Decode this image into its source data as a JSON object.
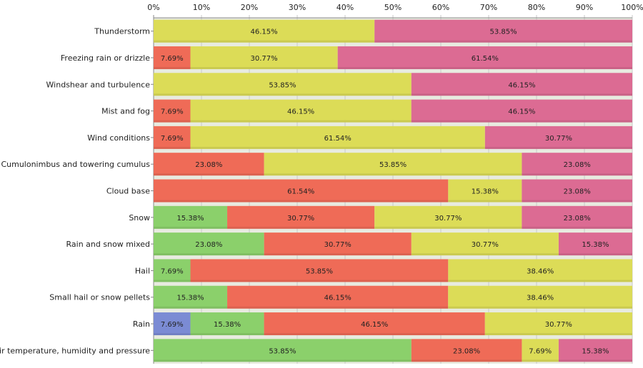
{
  "chart_data": {
    "type": "bar",
    "orientation": "horizontal",
    "stacked": "percent",
    "title": "",
    "xlabel": "",
    "ylabel": "",
    "xlim": [
      0,
      100
    ],
    "grid": true,
    "legend": "none",
    "x_ticks": [
      "0%",
      "10%",
      "20%",
      "30%",
      "40%",
      "50%",
      "60%",
      "70%",
      "80%",
      "90%",
      "100%"
    ],
    "categories": [
      "Thunderstorm",
      "Freezing rain or drizzle",
      "Windshear and turbulence",
      "Mist and fog",
      "Wind conditions",
      "Cumulonimbus and towering cumulus",
      "Cloud base",
      "Snow",
      "Rain and snow mixed",
      "Hail",
      "Small hail or snow pellets",
      "Rain",
      "Air temperature, humidity and pressure"
    ],
    "series": [
      {
        "name": "blue",
        "color": "#7b8bd4",
        "values": [
          0,
          0,
          0,
          0,
          0,
          0,
          0,
          0,
          0,
          0,
          0,
          7.69,
          0
        ]
      },
      {
        "name": "green",
        "color": "#8bd06b",
        "values": [
          0,
          0,
          0,
          0,
          0,
          0,
          0,
          15.38,
          23.08,
          7.69,
          15.38,
          15.38,
          53.85
        ]
      },
      {
        "name": "red",
        "color": "#ef6b57",
        "values": [
          0,
          7.69,
          0,
          7.69,
          7.69,
          23.08,
          61.54,
          30.77,
          30.77,
          53.85,
          46.15,
          46.15,
          23.08
        ]
      },
      {
        "name": "yellow",
        "color": "#dcdc57",
        "values": [
          46.15,
          30.77,
          53.85,
          46.15,
          61.54,
          53.85,
          15.38,
          30.77,
          30.77,
          38.46,
          38.46,
          30.77,
          7.69
        ]
      },
      {
        "name": "pink",
        "color": "#dc6b93",
        "values": [
          53.85,
          61.54,
          46.15,
          46.15,
          30.77,
          23.08,
          23.08,
          23.08,
          15.38,
          0,
          0,
          0,
          15.38
        ]
      }
    ]
  }
}
